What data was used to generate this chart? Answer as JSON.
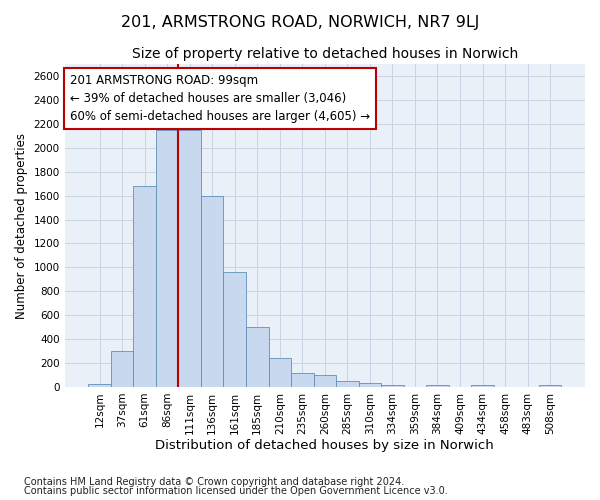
{
  "title": "201, ARMSTRONG ROAD, NORWICH, NR7 9LJ",
  "subtitle": "Size of property relative to detached houses in Norwich",
  "xlabel": "Distribution of detached houses by size in Norwich",
  "ylabel": "Number of detached properties",
  "footnote1": "Contains HM Land Registry data © Crown copyright and database right 2024.",
  "footnote2": "Contains public sector information licensed under the Open Government Licence v3.0.",
  "bar_labels": [
    "12sqm",
    "37sqm",
    "61sqm",
    "86sqm",
    "111sqm",
    "136sqm",
    "161sqm",
    "185sqm",
    "210sqm",
    "235sqm",
    "260sqm",
    "285sqm",
    "310sqm",
    "334sqm",
    "359sqm",
    "384sqm",
    "409sqm",
    "434sqm",
    "458sqm",
    "483sqm",
    "508sqm"
  ],
  "bar_values": [
    25,
    300,
    1680,
    2150,
    2150,
    1600,
    960,
    500,
    240,
    120,
    100,
    50,
    30,
    20,
    0,
    20,
    0,
    20,
    0,
    0,
    20
  ],
  "bar_color": "#c8d8ee",
  "bar_edge_color": "#6090bb",
  "grid_color": "#c8d4e4",
  "background_color": "#eaf0f8",
  "vline_x": 3.5,
  "vline_color": "#bb0000",
  "annotation_text": "201 ARMSTRONG ROAD: 99sqm\n← 39% of detached houses are smaller (3,046)\n60% of semi-detached houses are larger (4,605) →",
  "annotation_box_color": "#bb0000",
  "ylim": [
    0,
    2700
  ],
  "yticks": [
    0,
    200,
    400,
    600,
    800,
    1000,
    1200,
    1400,
    1600,
    1800,
    2000,
    2200,
    2400,
    2600
  ],
  "title_fontsize": 11.5,
  "subtitle_fontsize": 10,
  "ylabel_fontsize": 8.5,
  "xlabel_fontsize": 9.5,
  "tick_fontsize": 7.5,
  "annot_fontsize": 8.5,
  "footnote_fontsize": 7
}
